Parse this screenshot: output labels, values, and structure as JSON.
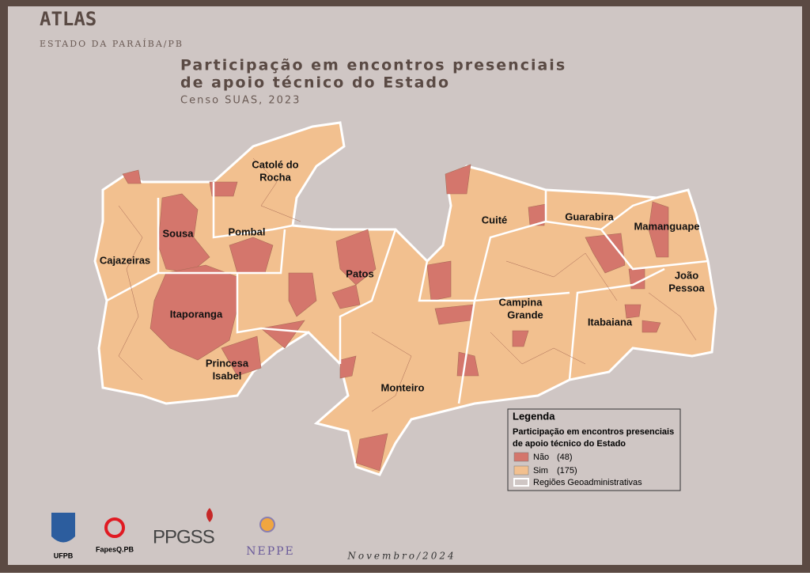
{
  "header": {
    "brand": "ATLAS",
    "subtitle": "ESTADO DA PARAÍBA/PB"
  },
  "title": {
    "line1": "Participação em encontros presenciais",
    "line2": "de apoio técnico do Estado",
    "source": "Censo SUAS, 2023"
  },
  "regions": [
    "Catolé do",
    "Rocha",
    "Sousa",
    "Pombal",
    "Cajazeiras",
    "Patos",
    "Itaporanga",
    "Princesa",
    "Isabel",
    "Monteiro",
    "Cuité",
    "Guarabira",
    "Mamanguape",
    "João",
    "Pessoa",
    "Campina",
    "Grande",
    "Itabaiana"
  ],
  "legend": {
    "title": "Legenda",
    "subtitle1": "Participação em encontros presenciais",
    "subtitle2": "de apoio técnico do Estado",
    "items": [
      {
        "label": "Não",
        "count": "(48)",
        "color": "#d4766c"
      },
      {
        "label": "Sim",
        "count": "(175)",
        "color": "#f2c08f"
      }
    ],
    "boundary": "Regiões Geoadministrativas"
  },
  "logos": [
    "UFPB",
    "FapesQ.PB",
    "PPGSS",
    "NEPPE"
  ],
  "footer": {
    "date": "Novembro/2024"
  }
}
